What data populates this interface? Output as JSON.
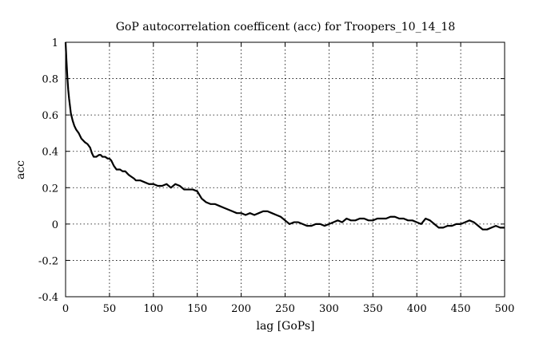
{
  "chart_data": {
    "type": "line",
    "title": "GoP autocorrelation coefficent (acc) for Troopers_10_14_18",
    "xlabel": "lag [GoPs]",
    "ylabel": "acc",
    "xlim": [
      0,
      500
    ],
    "ylim": [
      -0.4,
      1
    ],
    "grid": true,
    "grid_style": "dotted",
    "line_color": "#000000",
    "x_ticks": [
      "0",
      "50",
      "100",
      "150",
      "200",
      "250",
      "300",
      "350",
      "400",
      "450",
      "500"
    ],
    "y_ticks": [
      "-0.4",
      "-0.2",
      "0",
      "0.2",
      "0.4",
      "0.6",
      "0.8",
      "1"
    ],
    "series": [
      {
        "x": [
          0,
          1,
          2,
          3,
          4,
          5,
          6,
          8,
          10,
          12,
          15,
          18,
          20,
          22,
          25,
          28,
          30,
          32,
          35,
          38,
          40,
          42,
          45,
          48,
          50,
          52,
          55,
          58,
          60,
          62,
          65,
          68,
          70,
          72,
          75,
          78,
          80,
          85,
          90,
          95,
          100,
          105,
          110,
          115,
          120,
          125,
          130,
          135,
          140,
          145,
          150,
          155,
          160,
          165,
          170,
          175,
          180,
          185,
          190,
          195,
          200,
          205,
          210,
          215,
          220,
          225,
          230,
          235,
          240,
          245,
          250,
          255,
          260,
          265,
          270,
          275,
          280,
          285,
          290,
          295,
          300,
          305,
          310,
          315,
          320,
          325,
          330,
          335,
          340,
          345,
          350,
          355,
          360,
          365,
          370,
          375,
          380,
          385,
          390,
          395,
          400,
          405,
          410,
          415,
          420,
          425,
          430,
          435,
          440,
          445,
          450,
          455,
          460,
          465,
          470,
          475,
          480,
          485,
          490,
          495,
          500
        ],
        "y": [
          1.0,
          0.9,
          0.81,
          0.74,
          0.69,
          0.65,
          0.61,
          0.57,
          0.54,
          0.52,
          0.5,
          0.47,
          0.46,
          0.45,
          0.44,
          0.42,
          0.39,
          0.37,
          0.37,
          0.38,
          0.38,
          0.37,
          0.37,
          0.36,
          0.36,
          0.35,
          0.32,
          0.3,
          0.3,
          0.3,
          0.29,
          0.29,
          0.28,
          0.27,
          0.26,
          0.25,
          0.24,
          0.24,
          0.23,
          0.22,
          0.22,
          0.21,
          0.21,
          0.22,
          0.2,
          0.22,
          0.21,
          0.19,
          0.19,
          0.19,
          0.18,
          0.14,
          0.12,
          0.11,
          0.11,
          0.1,
          0.09,
          0.08,
          0.07,
          0.06,
          0.06,
          0.05,
          0.06,
          0.05,
          0.06,
          0.07,
          0.07,
          0.06,
          0.05,
          0.04,
          0.02,
          0.0,
          0.01,
          0.01,
          0.0,
          -0.01,
          -0.01,
          0.0,
          0.0,
          -0.01,
          0.0,
          0.01,
          0.02,
          0.01,
          0.03,
          0.02,
          0.02,
          0.03,
          0.03,
          0.02,
          0.02,
          0.03,
          0.03,
          0.03,
          0.04,
          0.04,
          0.03,
          0.03,
          0.02,
          0.02,
          0.01,
          0.0,
          0.03,
          0.02,
          0.0,
          -0.02,
          -0.02,
          -0.01,
          -0.01,
          0.0,
          0.0,
          0.01,
          0.02,
          0.01,
          -0.01,
          -0.03,
          -0.03,
          -0.02,
          -0.01,
          -0.02,
          -0.02
        ]
      }
    ]
  }
}
